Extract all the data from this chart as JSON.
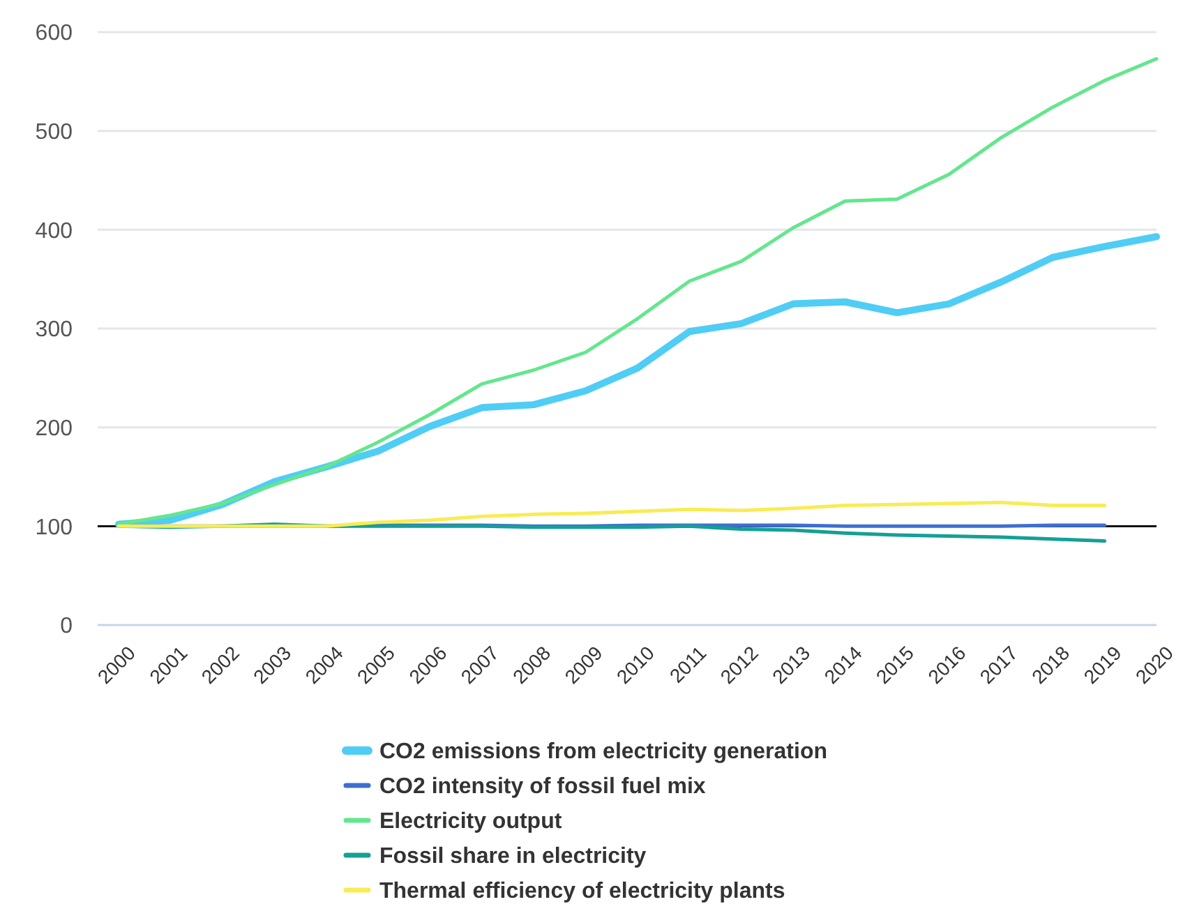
{
  "chart_data": {
    "type": "line",
    "categories": [
      "2000",
      "2001",
      "2002",
      "2003",
      "2004",
      "2005",
      "2006",
      "2007",
      "2008",
      "2009",
      "2010",
      "2011",
      "2012",
      "2013",
      "2014",
      "2015",
      "2016",
      "2017",
      "2018",
      "2019",
      "2020"
    ],
    "ylim": [
      0,
      600
    ],
    "yticks": [
      0,
      100,
      200,
      300,
      400,
      500,
      600
    ],
    "grid": "y",
    "legend": "bottom",
    "ref_lines": [
      {
        "axis": "y",
        "value": 100,
        "color": "#000000"
      }
    ],
    "series": [
      {
        "name": "CO2 emissions from electricity generation",
        "color": "#4fcdf5",
        "values": [
          102,
          106,
          122,
          145,
          160,
          176,
          201,
          220,
          223,
          237,
          260,
          297,
          305,
          325,
          327,
          316,
          325,
          347,
          372,
          383,
          393
        ]
      },
      {
        "name": "CO2 intensity of fossil fuel mix",
        "color": "#3e6fd0",
        "values": [
          100,
          100,
          100,
          100,
          100,
          101,
          101,
          101,
          100,
          100,
          101,
          101,
          101,
          101,
          100,
          100,
          100,
          100,
          101,
          101,
          null
        ]
      },
      {
        "name": "Electricity output",
        "color": "#64e68e",
        "values": [
          102,
          111,
          123,
          142,
          160,
          185,
          213,
          244,
          258,
          276,
          310,
          348,
          368,
          402,
          429,
          431,
          456,
          493,
          524,
          551,
          573
        ]
      },
      {
        "name": "Fossil share in electricity",
        "color": "#14a096",
        "values": [
          100,
          99,
          100,
          102,
          100,
          100,
          100,
          100,
          99,
          99,
          99,
          100,
          97,
          96,
          93,
          91,
          90,
          89,
          87,
          85,
          null
        ]
      },
      {
        "name": "Thermal efficiency of electricity plants",
        "color": "#f8ec55",
        "values": [
          100,
          100,
          100,
          100,
          100,
          104,
          106,
          110,
          112,
          113,
          115,
          117,
          116,
          118,
          121,
          122,
          123,
          124,
          121,
          121,
          null
        ]
      }
    ]
  }
}
